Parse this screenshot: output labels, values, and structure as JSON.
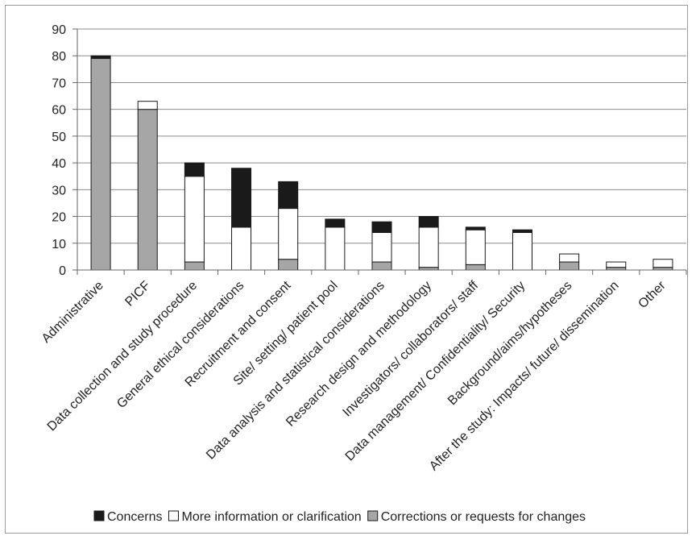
{
  "chart_data": {
    "type": "bar",
    "stacked": true,
    "categories": [
      "Administrative",
      "PICF",
      "Data collection and study procedure",
      "General ethical considerations",
      "Recruitment and consent",
      "Site/ setting/ patient pool",
      "Data analysis and statistical considerations",
      "Research design and methodology",
      "Investigators/ collaborators/ staff",
      "Data management/ Confidentiality/ Security",
      "Background/aims/hypotheses",
      "After the study: Impacts/ future/ dissemination",
      "Other"
    ],
    "series": [
      {
        "name": "Corrections or requests for changes",
        "color": "#a6a6a6",
        "values": [
          79,
          60,
          3,
          0,
          4,
          0,
          3,
          1,
          2,
          0,
          3,
          1,
          1
        ]
      },
      {
        "name": "More information or clarification",
        "color": "#ffffff",
        "values": [
          0,
          3,
          32,
          16,
          19,
          16,
          11,
          15,
          13,
          14,
          3,
          2,
          3
        ]
      },
      {
        "name": "Concerns",
        "color": "#1a1a1a",
        "values": [
          1,
          0,
          5,
          22,
          10,
          3,
          4,
          4,
          1,
          1,
          0,
          0,
          0
        ]
      }
    ],
    "legend_order": [
      "Concerns",
      "More information or clarification",
      "Corrections or requests for changes"
    ],
    "ylim": [
      0,
      90
    ],
    "yticks": [
      0,
      10,
      20,
      30,
      40,
      50,
      60,
      70,
      80,
      90
    ],
    "grid": true,
    "legend_position": "bottom"
  }
}
